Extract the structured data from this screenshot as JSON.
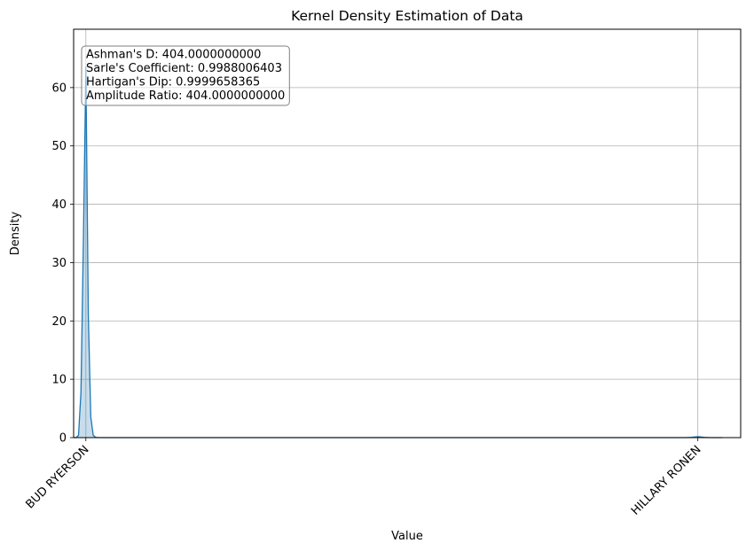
{
  "chart_data": {
    "type": "area",
    "title": "Kernel Density Estimation of Data",
    "xlabel": "Value",
    "ylabel": "Density",
    "xlim": [
      -0.2,
      10.7
    ],
    "ylim": [
      0,
      70
    ],
    "yticks": [
      0,
      10,
      20,
      30,
      40,
      50,
      60
    ],
    "xticks": [
      {
        "value": 0,
        "label": "BUD RYERSON"
      },
      {
        "value": 10,
        "label": "HILLARY RONEN"
      }
    ],
    "grid": true,
    "line_color": "#1f77b4",
    "fill_color": "#1f77b4",
    "fill_alpha": 0.25,
    "series": [
      {
        "x": [
          -0.2,
          -0.16,
          -0.12,
          -0.08,
          -0.04,
          0.0,
          0.04,
          0.08,
          0.12,
          0.16,
          0.2,
          0.4,
          1,
          2,
          3,
          4,
          5,
          6,
          7,
          8,
          9,
          9.8,
          9.9,
          10.0,
          10.1,
          10.2,
          10.4
        ],
        "y": [
          0,
          0,
          0.4,
          7.8,
          34,
          63.5,
          21,
          3.6,
          0.4,
          0.05,
          0,
          0,
          0,
          0,
          0,
          0,
          0,
          0,
          0,
          0,
          0,
          0,
          0.05,
          0.16,
          0.05,
          0,
          0
        ]
      }
    ],
    "annotation": {
      "placement": "top-left",
      "lines": [
        "Ashman's D: 404.0000000000",
        "Sarle's Coefficient: 0.9988006403",
        "Hartigan's Dip: 0.9999658365",
        "Amplitude Ratio: 404.0000000000"
      ]
    }
  }
}
